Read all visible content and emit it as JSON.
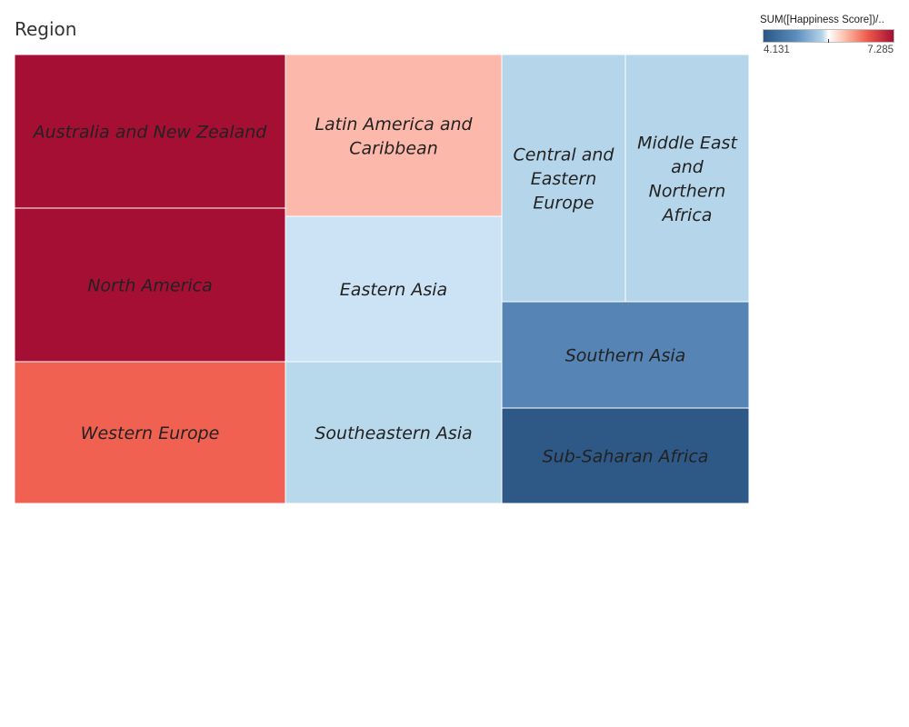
{
  "sheet": {
    "title": "Region"
  },
  "legend": {
    "title": "SUM([Happiness Score])/..",
    "min_label": "4.131",
    "max_label": "7.285",
    "colors": [
      "#2a5783",
      "#b4d3e9",
      "#ffffff",
      "#fcc2ad",
      "#a50f34"
    ]
  },
  "chart_data": {
    "type": "treemap",
    "title": "Region",
    "color_measure": "SUM([Happiness Score])/..",
    "color_range": [
      4.131,
      7.285
    ],
    "regions": [
      {
        "name": "Australia and New Zealand",
        "value": 7.285,
        "color": "#a50f34"
      },
      {
        "name": "North America",
        "value": 7.273,
        "color": "#a50f34"
      },
      {
        "name": "Western Europe",
        "value": 6.69,
        "color": "#f06151"
      },
      {
        "name": "Latin America and Caribbean",
        "value": 6.14,
        "color": "#fcb8aa"
      },
      {
        "name": "Eastern Asia",
        "value": 5.63,
        "color": "#cbe3f4"
      },
      {
        "name": "Southeastern Asia",
        "value": 5.32,
        "color": "#b8d8ec"
      },
      {
        "name": "Central and Eastern Europe",
        "value": 5.33,
        "color": "#b5d5ea"
      },
      {
        "name": "Middle East and Northern Africa",
        "value": 5.41,
        "color": "#b5d5ea"
      },
      {
        "name": "Southern Asia",
        "value": 4.58,
        "color": "#5584b5"
      },
      {
        "name": "Sub-Saharan Africa",
        "value": 4.2,
        "color": "#2e5986"
      }
    ]
  }
}
